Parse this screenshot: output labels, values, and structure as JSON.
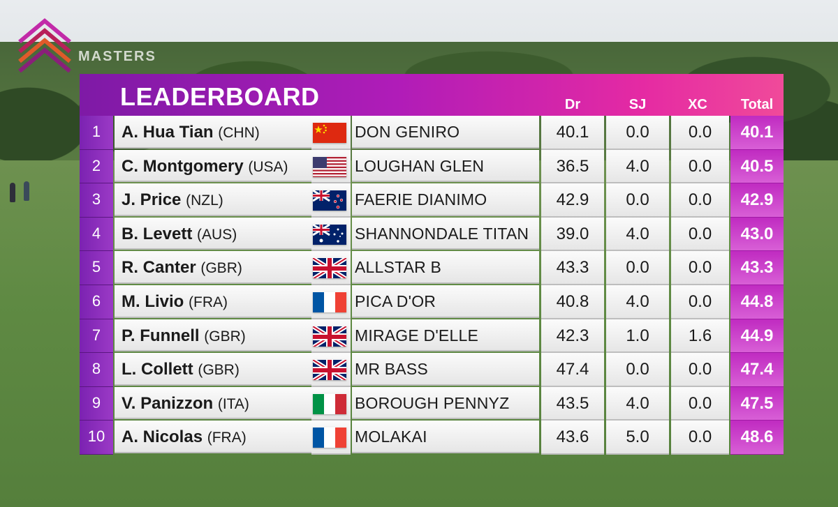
{
  "board": {
    "title": "LEADERBOARD",
    "columns": [
      "Dr",
      "SJ",
      "XC",
      "Total"
    ]
  },
  "logo": {
    "text": "MASTERS"
  },
  "rows": [
    {
      "rank": "1",
      "name": "A. Hua Tian",
      "nation": "(CHN)",
      "flag": "china-flag-icon",
      "horse": "DON GENIRO",
      "dr": "40.1",
      "sj": "0.0",
      "xc": "0.0",
      "total": "40.1"
    },
    {
      "rank": "2",
      "name": "C. Montgomery",
      "nation": "(USA)",
      "flag": "usa-flag-icon",
      "horse": "LOUGHAN GLEN",
      "dr": "36.5",
      "sj": "4.0",
      "xc": "0.0",
      "total": "40.5"
    },
    {
      "rank": "3",
      "name": "J. Price",
      "nation": "(NZL)",
      "flag": "new-zealand-flag-icon",
      "horse": "FAERIE DIANIMO",
      "dr": "42.9",
      "sj": "0.0",
      "xc": "0.0",
      "total": "42.9"
    },
    {
      "rank": "4",
      "name": "B. Levett",
      "nation": "(AUS)",
      "flag": "australia-flag-icon",
      "horse": "SHANNONDALE TITAN",
      "dr": "39.0",
      "sj": "4.0",
      "xc": "0.0",
      "total": "43.0"
    },
    {
      "rank": "5",
      "name": "R. Canter",
      "nation": "(GBR)",
      "flag": "uk-flag-icon",
      "horse": "ALLSTAR B",
      "dr": "43.3",
      "sj": "0.0",
      "xc": "0.0",
      "total": "43.3"
    },
    {
      "rank": "6",
      "name": "M. Livio",
      "nation": "(FRA)",
      "flag": "france-flag-icon",
      "horse": "PICA D'OR",
      "dr": "40.8",
      "sj": "4.0",
      "xc": "0.0",
      "total": "44.8"
    },
    {
      "rank": "7",
      "name": "P. Funnell",
      "nation": "(GBR)",
      "flag": "uk-flag-icon",
      "horse": "MIRAGE D'ELLE",
      "dr": "42.3",
      "sj": "1.0",
      "xc": "1.6",
      "total": "44.9"
    },
    {
      "rank": "8",
      "name": "L. Collett",
      "nation": "(GBR)",
      "flag": "uk-flag-icon",
      "horse": "MR BASS",
      "dr": "47.4",
      "sj": "0.0",
      "xc": "0.0",
      "total": "47.4"
    },
    {
      "rank": "9",
      "name": "V. Panizzon",
      "nation": "(ITA)",
      "flag": "italy-flag-icon",
      "horse": "BOROUGH PENNYZ",
      "dr": "43.5",
      "sj": "4.0",
      "xc": "0.0",
      "total": "47.5"
    },
    {
      "rank": "10",
      "name": "A. Nicolas",
      "nation": "(FRA)",
      "flag": "france-flag-icon",
      "horse": "MOLAKAI",
      "dr": "43.6",
      "sj": "5.0",
      "xc": "0.0",
      "total": "48.6"
    }
  ]
}
